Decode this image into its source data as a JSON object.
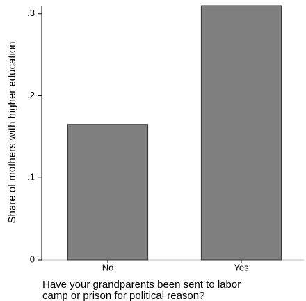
{
  "chart_data": {
    "type": "bar",
    "ylabel": "Share of mothers with higher education",
    "xlabel": [
      "Have your grandparents been sent to labor",
      "camp or prison for political reason?"
    ],
    "categories": [
      "No",
      "Yes"
    ],
    "values": [
      0.165,
      0.31
    ],
    "color": "#7f7f7f",
    "ylim": [
      0,
      0.31
    ],
    "yticks": [
      0,
      {
        "value": 0.1,
        "label": ".1"
      },
      {
        "value": 0.2,
        "label": ".2"
      },
      {
        "value": 0.3,
        "label": ".3"
      }
    ]
  }
}
